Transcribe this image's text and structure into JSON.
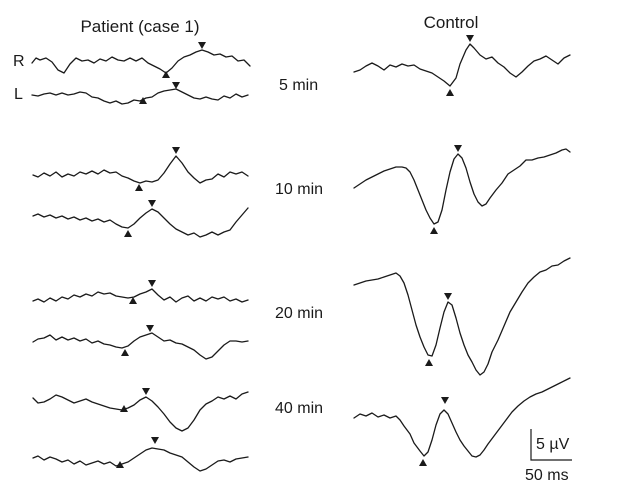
{
  "figure": {
    "patient_heading": "Patient (case 1)",
    "control_heading": "Control",
    "right_eye_label": "R",
    "left_eye_label": "L",
    "time_labels": [
      "5 min",
      "10 min",
      "20 min",
      "40 min"
    ],
    "scale_amplitude_label": "5 µV",
    "scale_time_label": "50 ms"
  }
}
